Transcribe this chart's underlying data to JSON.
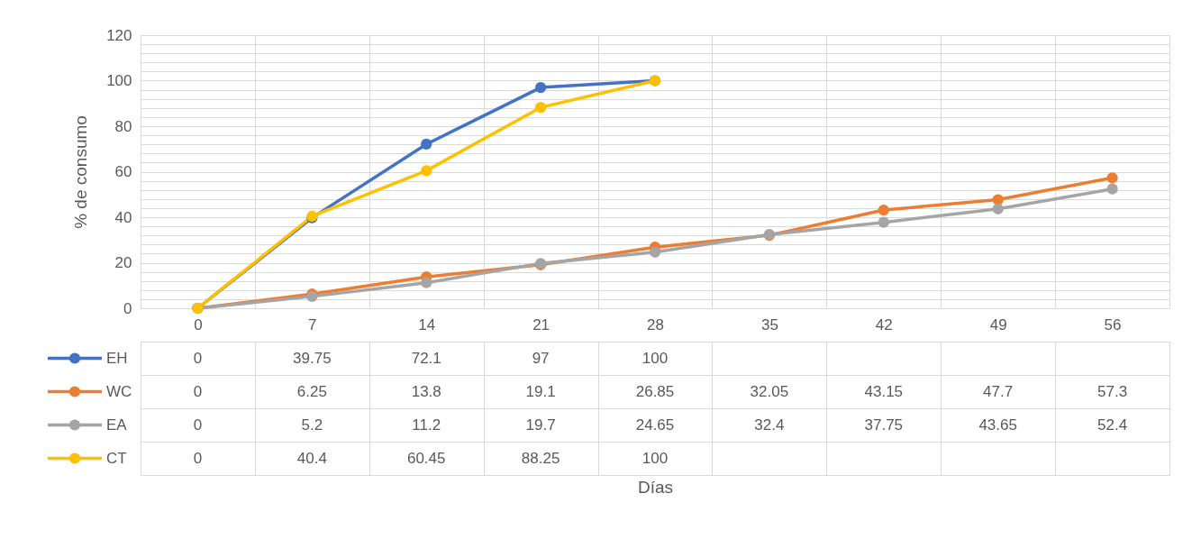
{
  "chart_data": {
    "type": "line",
    "annotations": [
      "Días"
    ],
    "ylabel": "% de consumo",
    "categories": [
      "0",
      "7",
      "14",
      "21",
      "28",
      "35",
      "42",
      "49",
      "56"
    ],
    "series": [
      {
        "name": "EH",
        "color": "#4472c4",
        "values": [
          0,
          39.75,
          72.1,
          97,
          100,
          null,
          null,
          null,
          null
        ]
      },
      {
        "name": "WC",
        "color": "#ed7d31",
        "values": [
          0,
          6.25,
          13.8,
          19.1,
          26.85,
          32.05,
          43.15,
          47.7,
          57.3
        ]
      },
      {
        "name": "EA",
        "color": "#a5a5a5",
        "values": [
          0,
          5.2,
          11.2,
          19.7,
          24.65,
          32.4,
          37.75,
          43.65,
          52.4
        ]
      },
      {
        "name": "CT",
        "color": "#ffc000",
        "values": [
          0,
          40.4,
          60.45,
          88.25,
          100,
          null,
          null,
          null,
          null
        ]
      }
    ],
    "ylim": [
      0,
      120
    ],
    "yticks": [
      0,
      {
        "value": 4,
        "label": null
      },
      {
        "value": 8,
        "label": null
      },
      {
        "value": 12,
        "label": null
      },
      {
        "value": 16,
        "label": null
      },
      20,
      {
        "value": 24,
        "label": null
      },
      {
        "value": 28,
        "label": null
      },
      {
        "value": 32,
        "label": null
      },
      {
        "value": 36,
        "label": null
      },
      40,
      {
        "value": 44,
        "label": null
      },
      {
        "value": 48,
        "label": null
      },
      {
        "value": 52,
        "label": null
      },
      {
        "value": 56,
        "label": null
      },
      60,
      {
        "value": 64,
        "label": null
      },
      {
        "value": 68,
        "label": null
      },
      {
        "value": 72,
        "label": null
      },
      {
        "value": 76,
        "label": null
      },
      80,
      {
        "value": 84,
        "label": null
      },
      {
        "value": 88,
        "label": null
      },
      {
        "value": 92,
        "label": null
      },
      {
        "value": 96,
        "label": null
      },
      100,
      {
        "value": 104,
        "label": null
      },
      {
        "value": 108,
        "label": null
      },
      {
        "value": 112,
        "label": null
      },
      {
        "value": 116,
        "label": null
      },
      120
    ],
    "grid": true,
    "marker": "circle",
    "line_style": "solid",
    "legend": "bottom",
    "data_labels": true
  }
}
